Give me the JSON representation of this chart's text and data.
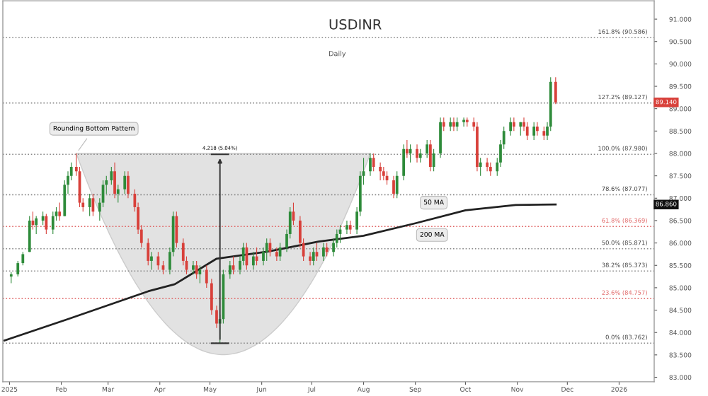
{
  "chart_data": {
    "type": "candlestick",
    "title": "USDINR",
    "subtitle": "Daily",
    "x": [
      "2025-01-02",
      "2025-01-06",
      "2025-01-09",
      "2025-01-13",
      "2025-01-15",
      "2025-01-17",
      "2025-01-21",
      "2025-01-23",
      "2025-01-27",
      "2025-01-29",
      "2025-01-31",
      "2025-02-03",
      "2025-02-05",
      "2025-02-07",
      "2025-02-10",
      "2025-02-12",
      "2025-02-14",
      "2025-02-18",
      "2025-02-20",
      "2025-02-24",
      "2025-02-26",
      "2025-02-28",
      "2025-03-03",
      "2025-03-05",
      "2025-03-07",
      "2025-03-11",
      "2025-03-13",
      "2025-03-17",
      "2025-03-19",
      "2025-03-21",
      "2025-03-25",
      "2025-03-27",
      "2025-03-31",
      "2025-04-03",
      "2025-04-07",
      "2025-04-09",
      "2025-04-11",
      "2025-04-15",
      "2025-04-17",
      "2025-04-21",
      "2025-04-23",
      "2025-04-25",
      "2025-04-29",
      "2025-05-02",
      "2025-05-05",
      "2025-05-07",
      "2025-05-09",
      "2025-05-13",
      "2025-05-15",
      "2025-05-19",
      "2025-05-21",
      "2025-05-23",
      "2025-05-27",
      "2025-05-29",
      "2025-06-02",
      "2025-06-04",
      "2025-06-06",
      "2025-06-10",
      "2025-06-12",
      "2025-06-16",
      "2025-06-18",
      "2025-06-20",
      "2025-06-24",
      "2025-06-26",
      "2025-06-30",
      "2025-07-02",
      "2025-07-04",
      "2025-07-08",
      "2025-07-10",
      "2025-07-14",
      "2025-07-16",
      "2025-07-18",
      "2025-07-22",
      "2025-07-24",
      "2025-07-28",
      "2025-07-30",
      "2025-08-01",
      "2025-08-05",
      "2025-08-07",
      "2025-08-11",
      "2025-08-13",
      "2025-08-15",
      "2025-08-19",
      "2025-08-21",
      "2025-08-25",
      "2025-08-27",
      "2025-08-29",
      "2025-09-02",
      "2025-09-04",
      "2025-09-08",
      "2025-09-10",
      "2025-09-12",
      "2025-09-16",
      "2025-09-18",
      "2025-09-22",
      "2025-09-24",
      "2025-09-26",
      "2025-09-30",
      "2025-10-02",
      "2025-10-06",
      "2025-10-08",
      "2025-10-10",
      "2025-10-14",
      "2025-10-16",
      "2025-10-20",
      "2025-10-22",
      "2025-10-24",
      "2025-10-28",
      "2025-10-30",
      "2025-11-03",
      "2025-11-05",
      "2025-11-07",
      "2025-11-11",
      "2025-11-13",
      "2025-11-17",
      "2025-11-19",
      "2025-11-21",
      "2025-11-24"
    ],
    "ohlc": [
      [
        85.25,
        85.35,
        85.1,
        85.3
      ],
      [
        85.3,
        85.6,
        85.25,
        85.55
      ],
      [
        85.55,
        85.8,
        85.5,
        85.75
      ],
      [
        85.8,
        86.6,
        85.8,
        86.5
      ],
      [
        86.5,
        86.7,
        86.3,
        86.4
      ],
      [
        86.4,
        86.6,
        86.2,
        86.55
      ],
      [
        86.5,
        86.7,
        86.4,
        86.6
      ],
      [
        86.6,
        86.65,
        86.2,
        86.3
      ],
      [
        86.3,
        86.7,
        86.2,
        86.6
      ],
      [
        86.6,
        86.8,
        86.5,
        86.7
      ],
      [
        86.7,
        86.9,
        86.5,
        86.6
      ],
      [
        86.6,
        87.4,
        86.6,
        87.3
      ],
      [
        87.3,
        87.6,
        87.1,
        87.5
      ],
      [
        87.5,
        87.8,
        87.4,
        87.7
      ],
      [
        87.7,
        88.0,
        87.5,
        87.6
      ],
      [
        87.6,
        87.7,
        86.8,
        86.9
      ],
      [
        86.9,
        87.0,
        86.7,
        86.8
      ],
      [
        86.8,
        87.1,
        86.6,
        87.0
      ],
      [
        87.0,
        87.1,
        86.6,
        86.7
      ],
      [
        86.7,
        87.0,
        86.5,
        86.9
      ],
      [
        86.9,
        87.4,
        86.8,
        87.3
      ],
      [
        87.3,
        87.5,
        87.1,
        87.4
      ],
      [
        87.4,
        87.7,
        87.3,
        87.6
      ],
      [
        87.6,
        87.8,
        87.0,
        87.1
      ],
      [
        87.1,
        87.3,
        86.9,
        87.2
      ],
      [
        87.2,
        87.6,
        87.1,
        87.5
      ],
      [
        87.5,
        87.6,
        87.0,
        87.1
      ],
      [
        87.1,
        87.2,
        86.7,
        86.8
      ],
      [
        86.8,
        86.9,
        86.2,
        86.3
      ],
      [
        86.3,
        86.4,
        85.9,
        86.0
      ],
      [
        86.0,
        86.1,
        85.5,
        85.6
      ],
      [
        85.6,
        85.8,
        85.4,
        85.7
      ],
      [
        85.7,
        85.8,
        85.4,
        85.5
      ],
      [
        85.5,
        85.6,
        85.3,
        85.4
      ],
      [
        85.4,
        85.9,
        85.3,
        85.8
      ],
      [
        85.8,
        86.7,
        85.7,
        86.6
      ],
      [
        86.6,
        86.7,
        85.9,
        86.0
      ],
      [
        86.0,
        86.1,
        85.5,
        85.6
      ],
      [
        85.6,
        85.7,
        85.3,
        85.4
      ],
      [
        85.4,
        85.6,
        85.3,
        85.5
      ],
      [
        85.5,
        85.6,
        85.2,
        85.3
      ],
      [
        85.3,
        85.5,
        85.1,
        85.4
      ],
      [
        85.4,
        85.5,
        85.0,
        85.1
      ],
      [
        85.1,
        85.2,
        84.4,
        84.5
      ],
      [
        84.5,
        84.6,
        84.1,
        84.2
      ],
      [
        84.2,
        84.4,
        83.76,
        84.3
      ],
      [
        84.3,
        85.4,
        84.2,
        85.3
      ],
      [
        85.3,
        85.6,
        85.2,
        85.5
      ],
      [
        85.5,
        85.7,
        85.3,
        85.4
      ],
      [
        85.4,
        85.7,
        85.3,
        85.6
      ],
      [
        85.6,
        86.0,
        85.5,
        85.9
      ],
      [
        85.9,
        86.0,
        85.4,
        85.5
      ],
      [
        85.5,
        85.8,
        85.4,
        85.7
      ],
      [
        85.7,
        85.9,
        85.5,
        85.6
      ],
      [
        85.6,
        85.9,
        85.5,
        85.8
      ],
      [
        85.8,
        86.1,
        85.6,
        86.0
      ],
      [
        86.0,
        86.1,
        85.7,
        85.8
      ],
      [
        85.8,
        85.9,
        85.6,
        85.7
      ],
      [
        85.7,
        86.0,
        85.6,
        85.9
      ],
      [
        85.9,
        86.3,
        85.8,
        86.2
      ],
      [
        86.2,
        86.8,
        86.1,
        86.7
      ],
      [
        86.7,
        86.9,
        86.4,
        86.5
      ],
      [
        86.5,
        86.6,
        85.9,
        86.0
      ],
      [
        86.0,
        86.1,
        85.6,
        85.7
      ],
      [
        85.7,
        85.8,
        85.5,
        85.6
      ],
      [
        85.6,
        85.9,
        85.5,
        85.8
      ],
      [
        85.8,
        86.0,
        85.6,
        85.7
      ],
      [
        85.7,
        86.0,
        85.6,
        85.9
      ],
      [
        85.9,
        86.0,
        85.7,
        85.8
      ],
      [
        85.8,
        86.1,
        85.7,
        86.0
      ],
      [
        86.0,
        86.3,
        85.9,
        86.2
      ],
      [
        86.2,
        86.4,
        86.0,
        86.3
      ],
      [
        86.3,
        86.5,
        86.2,
        86.4
      ],
      [
        86.4,
        86.5,
        86.2,
        86.3
      ],
      [
        86.3,
        86.8,
        86.2,
        86.7
      ],
      [
        86.7,
        87.6,
        86.6,
        87.5
      ],
      [
        87.5,
        87.9,
        87.3,
        87.6
      ],
      [
        87.6,
        88.0,
        87.5,
        87.9
      ],
      [
        87.9,
        88.0,
        87.6,
        87.7
      ],
      [
        87.7,
        87.8,
        87.4,
        87.6
      ],
      [
        87.6,
        87.7,
        87.4,
        87.5
      ],
      [
        87.5,
        87.6,
        87.3,
        87.4
      ],
      [
        87.4,
        87.5,
        87.0,
        87.1
      ],
      [
        87.1,
        87.6,
        87.0,
        87.5
      ],
      [
        87.5,
        88.2,
        87.4,
        88.1
      ],
      [
        88.1,
        88.3,
        87.9,
        88.0
      ],
      [
        88.0,
        88.2,
        87.8,
        88.1
      ],
      [
        88.1,
        88.2,
        87.8,
        87.9
      ],
      [
        87.9,
        88.1,
        87.8,
        88.0
      ],
      [
        88.0,
        88.3,
        87.9,
        88.2
      ],
      [
        88.2,
        88.3,
        87.6,
        87.7
      ],
      [
        87.7,
        88.1,
        87.6,
        88.0
      ],
      [
        88.0,
        88.8,
        87.9,
        88.7
      ],
      [
        88.7,
        88.8,
        88.5,
        88.6
      ],
      [
        88.6,
        88.8,
        88.5,
        88.7
      ],
      [
        88.7,
        88.8,
        88.5,
        88.6
      ],
      [
        88.6,
        88.8,
        88.5,
        88.7
      ],
      [
        88.7,
        88.8,
        88.6,
        88.75
      ],
      [
        88.75,
        88.8,
        88.6,
        88.7
      ],
      [
        88.7,
        88.8,
        88.5,
        88.6
      ],
      [
        88.6,
        88.7,
        87.6,
        87.7
      ],
      [
        87.7,
        87.9,
        87.5,
        87.8
      ],
      [
        87.8,
        87.9,
        87.6,
        87.7
      ],
      [
        87.7,
        87.8,
        87.5,
        87.6
      ],
      [
        87.6,
        87.9,
        87.5,
        87.8
      ],
      [
        87.8,
        88.3,
        87.7,
        88.2
      ],
      [
        88.2,
        88.6,
        88.1,
        88.5
      ],
      [
        88.5,
        88.8,
        88.4,
        88.7
      ],
      [
        88.7,
        88.8,
        88.5,
        88.6
      ],
      [
        88.6,
        88.7,
        88.4,
        88.7
      ],
      [
        88.7,
        88.8,
        88.5,
        88.6
      ],
      [
        88.6,
        88.7,
        88.3,
        88.4
      ],
      [
        88.4,
        88.7,
        88.3,
        88.6
      ],
      [
        88.6,
        88.7,
        88.4,
        88.5
      ],
      [
        88.5,
        88.6,
        88.3,
        88.4
      ],
      [
        88.4,
        88.7,
        88.3,
        88.6
      ],
      [
        88.6,
        89.7,
        88.5,
        89.6
      ],
      [
        89.6,
        89.7,
        89.1,
        89.14
      ]
    ],
    "series": [
      {
        "name": "200 MA",
        "type": "line",
        "color": "#222222",
        "x": [
          "2024-12-29",
          "2025-02-05",
          "2025-03-25",
          "2025-04-10",
          "2025-05-05",
          "2025-06-05",
          "2025-07-05",
          "2025-08-01",
          "2025-09-01",
          "2025-10-01",
          "2025-10-31",
          "2025-11-24"
        ],
        "values": [
          83.82,
          84.3,
          84.92,
          85.08,
          85.65,
          85.81,
          86.03,
          86.16,
          86.44,
          86.73,
          86.85,
          86.86
        ]
      }
    ],
    "xlim": [
      "2024-12-28",
      "2026-01-22"
    ],
    "xticks": [
      {
        "value": "2025-01-01",
        "label": "2025"
      },
      {
        "value": "2025-02-01",
        "label": "Feb"
      },
      {
        "value": "2025-03-01",
        "label": "Mar"
      },
      {
        "value": "2025-04-01",
        "label": "Apr"
      },
      {
        "value": "2025-05-01",
        "label": "May"
      },
      {
        "value": "2025-06-01",
        "label": "Jun"
      },
      {
        "value": "2025-07-01",
        "label": "Jul"
      },
      {
        "value": "2025-08-01",
        "label": "Aug"
      },
      {
        "value": "2025-09-01",
        "label": "Sep"
      },
      {
        "value": "2025-10-01",
        "label": "Oct"
      },
      {
        "value": "2025-11-01",
        "label": "Nov"
      },
      {
        "value": "2025-12-01",
        "label": "Dec"
      },
      {
        "value": "2026-01-01",
        "label": "2026"
      }
    ],
    "ylim": [
      82.9,
      91.41
    ],
    "yticks": [
      {
        "value": 83,
        "label": "83.000"
      },
      {
        "value": 83.5,
        "label": "83.500"
      },
      {
        "value": 84,
        "label": "84.000"
      },
      {
        "value": 84.5,
        "label": "84.500"
      },
      {
        "value": 85,
        "label": "85.000"
      },
      {
        "value": 85.5,
        "label": "85.500"
      },
      {
        "value": 86,
        "label": "86.000"
      },
      {
        "value": 86.5,
        "label": "86.500"
      },
      {
        "value": 87,
        "label": "87.000"
      },
      {
        "value": 87.5,
        "label": "87.500"
      },
      {
        "value": 88,
        "label": "88.000"
      },
      {
        "value": 88.5,
        "label": "88.500"
      },
      {
        "value": 89,
        "label": "89.000"
      },
      {
        "value": 89.5,
        "label": "89.500"
      },
      {
        "value": 90,
        "label": "90.000"
      },
      {
        "value": 90.5,
        "label": "90.500"
      },
      {
        "value": 91,
        "label": "91.000"
      }
    ],
    "ref_lines": [
      {
        "axis": "y",
        "value": 90.586,
        "label": "161.8% (90.586)",
        "color": "#888888",
        "line_style": "dotted"
      },
      {
        "axis": "y",
        "value": 89.127,
        "label": "127.2% (89.127)",
        "color": "#888888",
        "line_style": "dotted"
      },
      {
        "axis": "y",
        "value": 87.98,
        "label": "100.0% (87.980)",
        "color": "#888888",
        "line_style": "dotted"
      },
      {
        "axis": "y",
        "value": 87.077,
        "label": "78.6% (87.077)",
        "color": "#888888",
        "line_style": "dotted"
      },
      {
        "axis": "y",
        "value": 86.369,
        "label": "61.8% (86.369)",
        "color": "#e06666",
        "line_style": "dotted"
      },
      {
        "axis": "y",
        "value": 85.871,
        "label": "50.0% (85.871)",
        "color": "#888888",
        "line_style": "dotted"
      },
      {
        "axis": "y",
        "value": 85.373,
        "label": "38.2% (85.373)",
        "color": "#888888",
        "line_style": "dotted"
      },
      {
        "axis": "y",
        "value": 84.757,
        "label": "23.6% (84.757)",
        "color": "#e06666",
        "line_style": "dotted"
      },
      {
        "axis": "y",
        "value": 83.762,
        "label": "0.0% (83.762)",
        "color": "#888888",
        "line_style": "dotted"
      }
    ],
    "annotations": [
      {
        "text": "4.218 (5.04%)",
        "x": "2025-05-07",
        "y": 87.98
      },
      {
        "text": "50 MA",
        "x": "2025-09-12",
        "y": 86.9
      },
      {
        "text": "Rounding Bottom Pattern",
        "x": "2025-02-10",
        "y": 88.0
      },
      "89.140",
      "86.860"
    ],
    "grid": false,
    "legend": false
  }
}
